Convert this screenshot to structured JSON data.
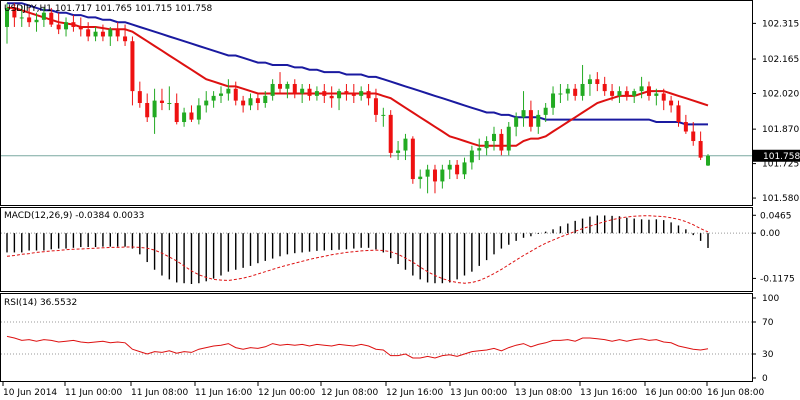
{
  "chart_data": [
    {
      "type": "candlestick",
      "title": "USDJPY,H1  101.717 101.765 101.715 101.758",
      "price_ticks": [
        "102.315",
        "102.165",
        "102.020",
        "101.870",
        "101.725",
        "101.580"
      ],
      "current_price_label": "101.758",
      "ylim": [
        101.555,
        102.405
      ],
      "x_ticks": [
        "10 Jun 2014",
        "11 Jun 00:00",
        "11 Jun 08:00",
        "11 Jun 16:00",
        "12 Jun 00:00",
        "12 Jun 08:00",
        "12 Jun 16:00",
        "13 Jun 00:00",
        "13 Jun 08:00",
        "13 Jun 16:00",
        "16 Jun 00:00",
        "16 Jun 08:00"
      ],
      "candles": [
        {
          "o": 102.3,
          "h": 102.4,
          "l": 102.23,
          "c": 102.38
        },
        {
          "o": 102.38,
          "h": 102.4,
          "l": 102.3,
          "c": 102.34
        },
        {
          "o": 102.34,
          "h": 102.39,
          "l": 102.3,
          "c": 102.34
        },
        {
          "o": 102.34,
          "h": 102.38,
          "l": 102.3,
          "c": 102.32
        },
        {
          "o": 102.32,
          "h": 102.36,
          "l": 102.28,
          "c": 102.33
        },
        {
          "o": 102.33,
          "h": 102.38,
          "l": 102.3,
          "c": 102.36
        },
        {
          "o": 102.36,
          "h": 102.38,
          "l": 102.3,
          "c": 102.31
        },
        {
          "o": 102.31,
          "h": 102.36,
          "l": 102.27,
          "c": 102.29
        },
        {
          "o": 102.29,
          "h": 102.34,
          "l": 102.26,
          "c": 102.32
        },
        {
          "o": 102.32,
          "h": 102.35,
          "l": 102.28,
          "c": 102.3
        },
        {
          "o": 102.3,
          "h": 102.34,
          "l": 102.26,
          "c": 102.29
        },
        {
          "o": 102.29,
          "h": 102.32,
          "l": 102.24,
          "c": 102.26
        },
        {
          "o": 102.26,
          "h": 102.3,
          "l": 102.24,
          "c": 102.28
        },
        {
          "o": 102.28,
          "h": 102.31,
          "l": 102.24,
          "c": 102.26
        },
        {
          "o": 102.26,
          "h": 102.3,
          "l": 102.22,
          "c": 102.29
        },
        {
          "o": 102.29,
          "h": 102.32,
          "l": 102.24,
          "c": 102.26
        },
        {
          "o": 102.26,
          "h": 102.31,
          "l": 102.22,
          "c": 102.24
        },
        {
          "o": 102.24,
          "h": 102.26,
          "l": 101.97,
          "c": 102.03
        },
        {
          "o": 102.03,
          "h": 102.07,
          "l": 101.96,
          "c": 101.98
        },
        {
          "o": 101.98,
          "h": 102.02,
          "l": 101.9,
          "c": 101.92
        },
        {
          "o": 101.92,
          "h": 102.04,
          "l": 101.85,
          "c": 101.99
        },
        {
          "o": 101.99,
          "h": 102.04,
          "l": 101.95,
          "c": 101.98
        },
        {
          "o": 101.98,
          "h": 102.05,
          "l": 101.95,
          "c": 101.98
        },
        {
          "o": 101.98,
          "h": 102.02,
          "l": 101.89,
          "c": 101.9
        },
        {
          "o": 101.9,
          "h": 101.96,
          "l": 101.88,
          "c": 101.94
        },
        {
          "o": 101.94,
          "h": 101.97,
          "l": 101.9,
          "c": 101.91
        },
        {
          "o": 101.91,
          "h": 102.0,
          "l": 101.89,
          "c": 101.97
        },
        {
          "o": 101.97,
          "h": 102.03,
          "l": 101.94,
          "c": 101.99
        },
        {
          "o": 101.99,
          "h": 102.03,
          "l": 101.96,
          "c": 102.01
        },
        {
          "o": 102.01,
          "h": 102.05,
          "l": 101.98,
          "c": 102.02
        },
        {
          "o": 102.02,
          "h": 102.08,
          "l": 101.99,
          "c": 102.04
        },
        {
          "o": 102.04,
          "h": 102.07,
          "l": 101.97,
          "c": 101.99
        },
        {
          "o": 101.99,
          "h": 102.01,
          "l": 101.94,
          "c": 101.97
        },
        {
          "o": 101.97,
          "h": 102.02,
          "l": 101.95,
          "c": 102.0
        },
        {
          "o": 102.0,
          "h": 102.02,
          "l": 101.95,
          "c": 101.98
        },
        {
          "o": 101.98,
          "h": 102.03,
          "l": 101.96,
          "c": 102.01
        },
        {
          "o": 102.01,
          "h": 102.08,
          "l": 101.99,
          "c": 102.06
        },
        {
          "o": 102.06,
          "h": 102.11,
          "l": 102.02,
          "c": 102.04
        },
        {
          "o": 102.04,
          "h": 102.07,
          "l": 102.0,
          "c": 102.06
        },
        {
          "o": 102.06,
          "h": 102.08,
          "l": 102.0,
          "c": 102.02
        },
        {
          "o": 102.02,
          "h": 102.06,
          "l": 101.98,
          "c": 102.04
        },
        {
          "o": 102.04,
          "h": 102.06,
          "l": 101.99,
          "c": 102.01
        },
        {
          "o": 102.01,
          "h": 102.05,
          "l": 101.99,
          "c": 102.03
        },
        {
          "o": 102.03,
          "h": 102.06,
          "l": 101.98,
          "c": 102.01
        },
        {
          "o": 102.01,
          "h": 102.05,
          "l": 101.96,
          "c": 102.0
        },
        {
          "o": 102.0,
          "h": 102.04,
          "l": 101.95,
          "c": 102.03
        },
        {
          "o": 102.03,
          "h": 102.06,
          "l": 101.99,
          "c": 102.02
        },
        {
          "o": 102.02,
          "h": 102.06,
          "l": 101.98,
          "c": 102.01
        },
        {
          "o": 102.01,
          "h": 102.05,
          "l": 101.99,
          "c": 102.03
        },
        {
          "o": 102.03,
          "h": 102.06,
          "l": 101.97,
          "c": 102.0
        },
        {
          "o": 102.0,
          "h": 102.04,
          "l": 101.9,
          "c": 101.93
        },
        {
          "o": 101.93,
          "h": 101.96,
          "l": 101.88,
          "c": 101.93
        },
        {
          "o": 101.93,
          "h": 101.95,
          "l": 101.75,
          "c": 101.77
        },
        {
          "o": 101.77,
          "h": 101.82,
          "l": 101.74,
          "c": 101.78
        },
        {
          "o": 101.78,
          "h": 101.85,
          "l": 101.74,
          "c": 101.83
        },
        {
          "o": 101.83,
          "h": 101.84,
          "l": 101.64,
          "c": 101.66
        },
        {
          "o": 101.66,
          "h": 101.7,
          "l": 101.62,
          "c": 101.67
        },
        {
          "o": 101.67,
          "h": 101.72,
          "l": 101.6,
          "c": 101.7
        },
        {
          "o": 101.7,
          "h": 101.72,
          "l": 101.6,
          "c": 101.65
        },
        {
          "o": 101.65,
          "h": 101.72,
          "l": 101.62,
          "c": 101.7
        },
        {
          "o": 101.7,
          "h": 101.74,
          "l": 101.66,
          "c": 101.72
        },
        {
          "o": 101.72,
          "h": 101.74,
          "l": 101.66,
          "c": 101.68
        },
        {
          "o": 101.68,
          "h": 101.75,
          "l": 101.66,
          "c": 101.73
        },
        {
          "o": 101.73,
          "h": 101.8,
          "l": 101.7,
          "c": 101.78
        },
        {
          "o": 101.78,
          "h": 101.83,
          "l": 101.74,
          "c": 101.79
        },
        {
          "o": 101.79,
          "h": 101.84,
          "l": 101.76,
          "c": 101.82
        },
        {
          "o": 101.82,
          "h": 101.88,
          "l": 101.78,
          "c": 101.85
        },
        {
          "o": 101.85,
          "h": 101.87,
          "l": 101.76,
          "c": 101.78
        },
        {
          "o": 101.78,
          "h": 101.9,
          "l": 101.76,
          "c": 101.88
        },
        {
          "o": 101.88,
          "h": 101.94,
          "l": 101.84,
          "c": 101.92
        },
        {
          "o": 101.92,
          "h": 102.03,
          "l": 101.88,
          "c": 101.95
        },
        {
          "o": 101.95,
          "h": 101.99,
          "l": 101.86,
          "c": 101.88
        },
        {
          "o": 101.88,
          "h": 101.95,
          "l": 101.85,
          "c": 101.93
        },
        {
          "o": 101.93,
          "h": 101.98,
          "l": 101.9,
          "c": 101.96
        },
        {
          "o": 101.96,
          "h": 102.05,
          "l": 101.93,
          "c": 102.02
        },
        {
          "o": 102.02,
          "h": 102.06,
          "l": 101.98,
          "c": 102.02
        },
        {
          "o": 102.02,
          "h": 102.06,
          "l": 101.99,
          "c": 102.04
        },
        {
          "o": 102.04,
          "h": 102.06,
          "l": 101.99,
          "c": 102.01
        },
        {
          "o": 102.01,
          "h": 102.14,
          "l": 101.99,
          "c": 102.06
        },
        {
          "o": 102.06,
          "h": 102.1,
          "l": 102.01,
          "c": 102.08
        },
        {
          "o": 102.08,
          "h": 102.11,
          "l": 102.03,
          "c": 102.06
        },
        {
          "o": 102.06,
          "h": 102.09,
          "l": 102.01,
          "c": 102.03
        },
        {
          "o": 102.03,
          "h": 102.06,
          "l": 101.99,
          "c": 102.01
        },
        {
          "o": 102.01,
          "h": 102.05,
          "l": 101.98,
          "c": 102.03
        },
        {
          "o": 102.03,
          "h": 102.05,
          "l": 101.99,
          "c": 102.01
        },
        {
          "o": 102.01,
          "h": 102.04,
          "l": 101.98,
          "c": 102.03
        },
        {
          "o": 102.03,
          "h": 102.09,
          "l": 102.0,
          "c": 102.05
        },
        {
          "o": 102.05,
          "h": 102.07,
          "l": 101.99,
          "c": 102.01
        },
        {
          "o": 102.01,
          "h": 102.04,
          "l": 101.97,
          "c": 102.02
        },
        {
          "o": 102.02,
          "h": 102.04,
          "l": 101.95,
          "c": 101.99
        },
        {
          "o": 101.99,
          "h": 102.01,
          "l": 101.94,
          "c": 101.97
        },
        {
          "o": 101.97,
          "h": 101.99,
          "l": 101.88,
          "c": 101.9
        },
        {
          "o": 101.9,
          "h": 101.93,
          "l": 101.85,
          "c": 101.86
        },
        {
          "o": 101.86,
          "h": 101.9,
          "l": 101.8,
          "c": 101.82
        },
        {
          "o": 101.82,
          "h": 101.86,
          "l": 101.74,
          "c": 101.75
        },
        {
          "o": 101.717,
          "h": 101.765,
          "l": 101.715,
          "c": 101.758
        }
      ],
      "ma_fast": [
        102.38,
        102.38,
        102.37,
        102.36,
        102.35,
        102.34,
        102.33,
        102.32,
        102.315,
        102.31,
        102.3,
        102.3,
        102.3,
        102.295,
        102.29,
        102.29,
        102.29,
        102.28,
        102.26,
        102.24,
        102.22,
        102.2,
        102.18,
        102.16,
        102.14,
        102.12,
        102.1,
        102.08,
        102.07,
        102.06,
        102.05,
        102.05,
        102.04,
        102.03,
        102.02,
        102.02,
        102.02,
        102.02,
        102.02,
        102.02,
        102.02,
        102.02,
        102.02,
        102.02,
        102.02,
        102.02,
        102.02,
        102.02,
        102.02,
        102.02,
        102.02,
        102.01,
        102.0,
        101.98,
        101.96,
        101.94,
        101.92,
        101.9,
        101.88,
        101.86,
        101.84,
        101.83,
        101.82,
        101.81,
        101.8,
        101.8,
        101.8,
        101.8,
        101.8,
        101.8,
        101.82,
        101.83,
        101.83,
        101.84,
        101.86,
        101.88,
        101.9,
        101.92,
        101.94,
        101.96,
        101.98,
        101.99,
        102.0,
        102.01,
        102.01,
        102.01,
        102.02,
        102.03,
        102.03,
        102.03,
        102.02,
        102.01,
        102.0,
        101.99,
        101.98,
        101.97
      ],
      "ma_slow": [
        102.4,
        102.4,
        102.4,
        102.39,
        102.38,
        102.37,
        102.37,
        102.36,
        102.36,
        102.35,
        102.35,
        102.34,
        102.34,
        102.33,
        102.33,
        102.32,
        102.32,
        102.31,
        102.3,
        102.29,
        102.28,
        102.27,
        102.26,
        102.25,
        102.24,
        102.23,
        102.22,
        102.21,
        102.2,
        102.19,
        102.18,
        102.18,
        102.17,
        102.16,
        102.15,
        102.15,
        102.14,
        102.14,
        102.14,
        102.13,
        102.13,
        102.12,
        102.12,
        102.11,
        102.11,
        102.11,
        102.1,
        102.1,
        102.1,
        102.09,
        102.09,
        102.08,
        102.07,
        102.06,
        102.05,
        102.04,
        102.03,
        102.02,
        102.01,
        102.0,
        101.99,
        101.98,
        101.97,
        101.96,
        101.95,
        101.94,
        101.94,
        101.93,
        101.93,
        101.92,
        101.92,
        101.92,
        101.92,
        101.91,
        101.91,
        101.91,
        101.91,
        101.91,
        101.91,
        101.91,
        101.91,
        101.91,
        101.91,
        101.91,
        101.91,
        101.91,
        101.91,
        101.91,
        101.9,
        101.9,
        101.9,
        101.9,
        101.89,
        101.89,
        101.89,
        101.89
      ]
    },
    {
      "type": "bar",
      "title": "MACD(12,26,9) -0.0384 0.0033",
      "y_ticks": [
        "0.0465",
        "0.00",
        "-0.1175"
      ],
      "ylim": [
        -0.145,
        0.055
      ],
      "values": [
        -0.05,
        -0.05,
        -0.05,
        -0.045,
        -0.045,
        -0.045,
        -0.042,
        -0.04,
        -0.04,
        -0.038,
        -0.036,
        -0.036,
        -0.036,
        -0.035,
        -0.035,
        -0.035,
        -0.035,
        -0.04,
        -0.055,
        -0.075,
        -0.095,
        -0.11,
        -0.12,
        -0.128,
        -0.13,
        -0.132,
        -0.13,
        -0.125,
        -0.118,
        -0.11,
        -0.1,
        -0.095,
        -0.09,
        -0.085,
        -0.078,
        -0.072,
        -0.066,
        -0.06,
        -0.055,
        -0.052,
        -0.05,
        -0.048,
        -0.046,
        -0.045,
        -0.044,
        -0.043,
        -0.042,
        -0.04,
        -0.038,
        -0.038,
        -0.042,
        -0.05,
        -0.065,
        -0.08,
        -0.095,
        -0.11,
        -0.12,
        -0.128,
        -0.13,
        -0.13,
        -0.128,
        -0.12,
        -0.11,
        -0.1,
        -0.085,
        -0.07,
        -0.055,
        -0.04,
        -0.03,
        -0.02,
        -0.012,
        -0.008,
        -0.002,
        0.004,
        0.01,
        0.018,
        0.025,
        0.032,
        0.038,
        0.043,
        0.046,
        0.046,
        0.045,
        0.044,
        0.04,
        0.038,
        0.036,
        0.035,
        0.036,
        0.034,
        0.028,
        0.02,
        0.01,
        -0.005,
        -0.02,
        -0.0384
      ],
      "signal": [
        -0.06,
        -0.058,
        -0.055,
        -0.053,
        -0.05,
        -0.048,
        -0.046,
        -0.045,
        -0.043,
        -0.042,
        -0.041,
        -0.04,
        -0.039,
        -0.038,
        -0.037,
        -0.037,
        -0.036,
        -0.036,
        -0.037,
        -0.039,
        -0.044,
        -0.052,
        -0.062,
        -0.072,
        -0.085,
        -0.098,
        -0.108,
        -0.115,
        -0.12,
        -0.122,
        -0.123,
        -0.12,
        -0.117,
        -0.112,
        -0.106,
        -0.1,
        -0.094,
        -0.088,
        -0.083,
        -0.078,
        -0.073,
        -0.068,
        -0.064,
        -0.06,
        -0.056,
        -0.053,
        -0.05,
        -0.048,
        -0.046,
        -0.045,
        -0.044,
        -0.045,
        -0.048,
        -0.055,
        -0.065,
        -0.075,
        -0.088,
        -0.1,
        -0.11,
        -0.118,
        -0.124,
        -0.128,
        -0.13,
        -0.128,
        -0.123,
        -0.115,
        -0.105,
        -0.094,
        -0.082,
        -0.07,
        -0.058,
        -0.047,
        -0.036,
        -0.026,
        -0.018,
        -0.01,
        -0.003,
        0.005,
        0.012,
        0.018,
        0.024,
        0.03,
        0.035,
        0.039,
        0.042,
        0.044,
        0.045,
        0.045,
        0.044,
        0.043,
        0.04,
        0.036,
        0.03,
        0.022,
        0.012,
        0.0033
      ]
    },
    {
      "type": "line",
      "title": "RSI(14) 36.5532",
      "y_ticks": [
        "100",
        "70",
        "30",
        "0"
      ],
      "levels": [
        70,
        30
      ],
      "ylim": [
        0,
        100
      ],
      "values": [
        52,
        50,
        47,
        48,
        46,
        48,
        47,
        45,
        46,
        47,
        45,
        44,
        45,
        46,
        44,
        45,
        44,
        36,
        33,
        30,
        33,
        32,
        34,
        31,
        33,
        32,
        36,
        38,
        40,
        41,
        43,
        38,
        36,
        38,
        37,
        39,
        43,
        41,
        42,
        41,
        42,
        40,
        42,
        41,
        40,
        42,
        41,
        40,
        42,
        40,
        36,
        35,
        28,
        28,
        30,
        25,
        25,
        27,
        25,
        28,
        29,
        27,
        30,
        33,
        34,
        35,
        37,
        34,
        38,
        41,
        43,
        39,
        42,
        44,
        47,
        47,
        48,
        46,
        50,
        50,
        49,
        48,
        46,
        48,
        46,
        48,
        49,
        47,
        48,
        45,
        44,
        40,
        38,
        36,
        35,
        36.55
      ]
    }
  ]
}
